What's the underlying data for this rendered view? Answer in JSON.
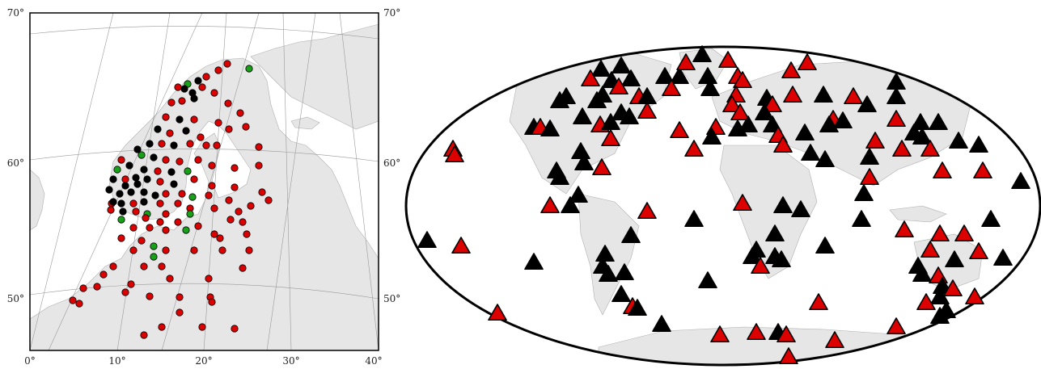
{
  "left_map": {
    "lat_ticks_left": [
      "70°",
      "60°",
      "50°"
    ],
    "lat_ticks_right": [
      "70°",
      "60°",
      "50°"
    ],
    "lon_ticks_bottom": [
      "0°",
      "10°",
      "20°",
      "30°",
      "40°"
    ],
    "marker_colors": {
      "red": "#dd0000",
      "black": "#000000",
      "green": "#18a018"
    },
    "land_color": "#e6e6e6",
    "sea_color": "#ffffff"
  },
  "right_map": {
    "projection": "ellipse",
    "marker_colors": {
      "red": "#dd0000",
      "black": "#000000"
    },
    "land_color": "#e6e6e6"
  }
}
